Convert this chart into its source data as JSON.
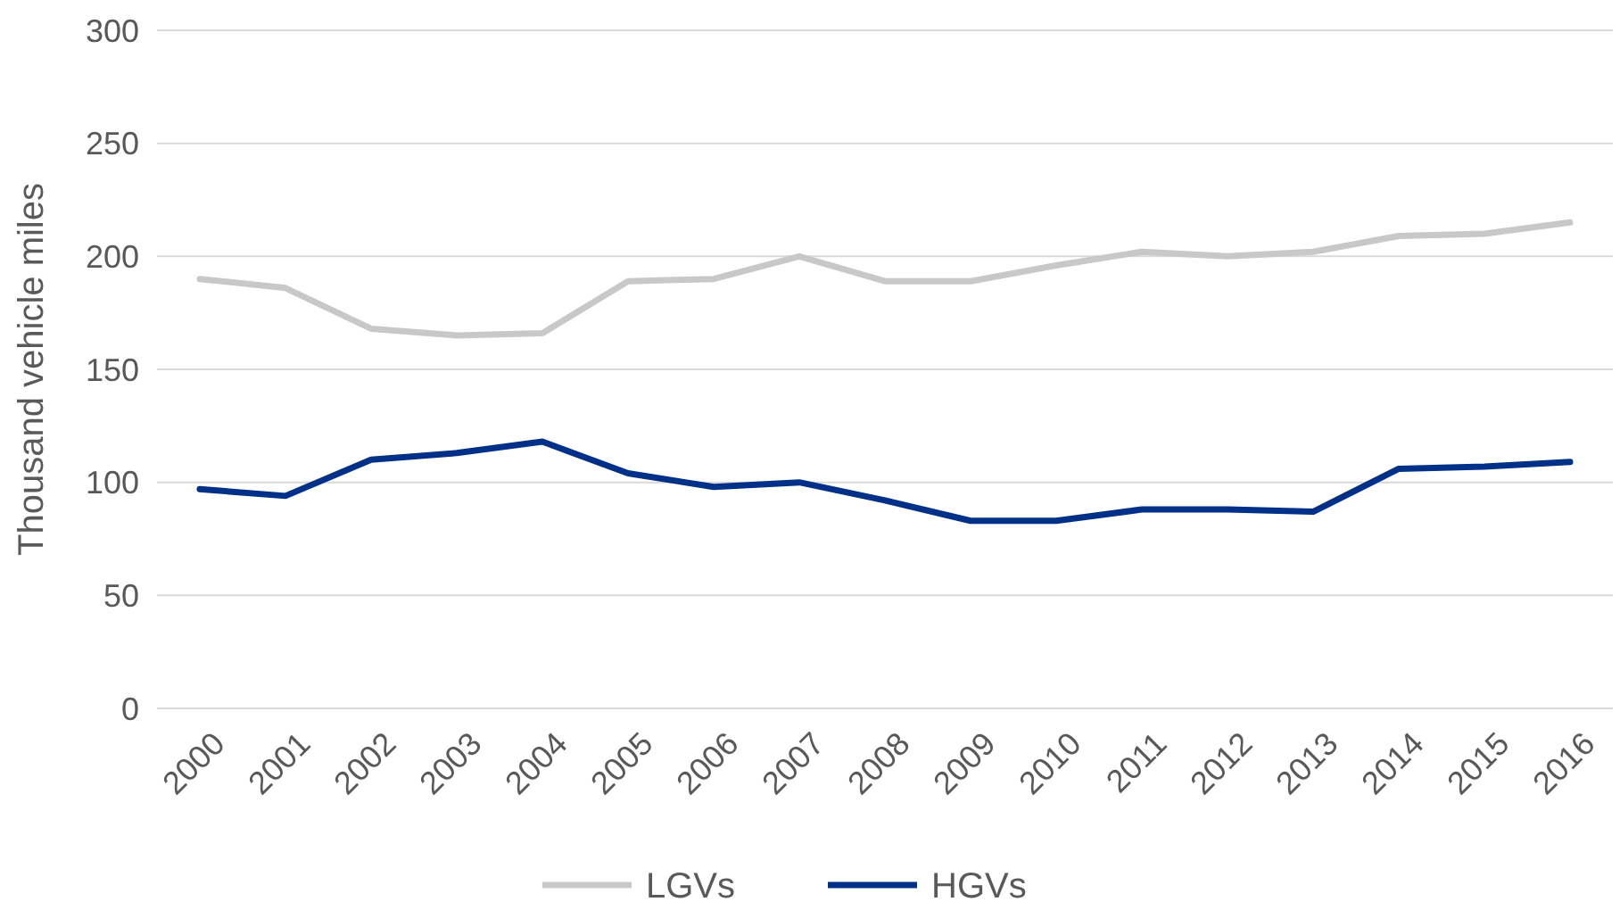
{
  "chart_data": {
    "type": "line",
    "ylabel": "Thousand vehicle miles",
    "categories": [
      "2000",
      "2001",
      "2002",
      "2003",
      "2004",
      "2005",
      "2006",
      "2007",
      "2008",
      "2009",
      "2010",
      "2011",
      "2012",
      "2013",
      "2014",
      "2015",
      "2016"
    ],
    "series": [
      {
        "name": "LGVs",
        "color": "#c8c8c8",
        "values": [
          190,
          186,
          168,
          165,
          166,
          189,
          190,
          200,
          189,
          189,
          196,
          202,
          200,
          202,
          209,
          210,
          215
        ]
      },
      {
        "name": "HGVs",
        "color": "#003087",
        "values": [
          97,
          94,
          110,
          113,
          118,
          104,
          98,
          100,
          92,
          83,
          83,
          88,
          88,
          87,
          106,
          107,
          109
        ]
      }
    ],
    "ylim": [
      0,
      300
    ],
    "yticks": [
      0,
      50,
      100,
      150,
      200,
      250,
      300
    ],
    "grid": "y",
    "legend": "bottom",
    "marker": "none",
    "line_style": "solid"
  }
}
